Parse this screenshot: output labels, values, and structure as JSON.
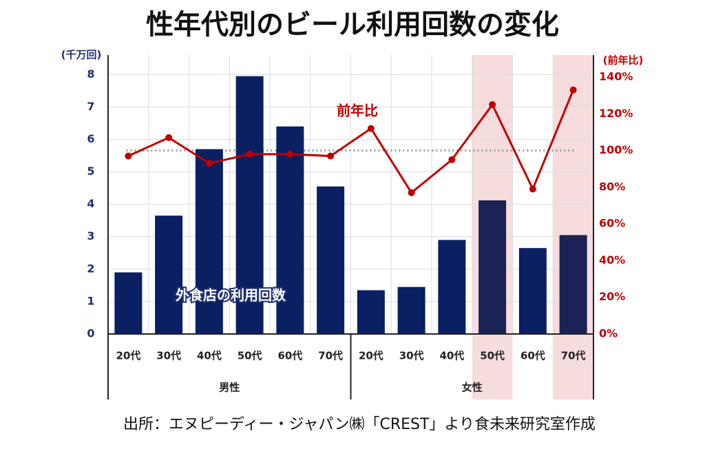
{
  "chart_data": {
    "type": "combo",
    "title": "性年代別のビール利用回数の変化",
    "source": "出所：エヌピーディー・ジャパン㈱「CREST」より食未来研究室作成",
    "y_label": "(千万回)",
    "y2_label": "(前年比)",
    "categories": [
      "20代",
      "30代",
      "40代",
      "50代",
      "60代",
      "70代",
      "20代",
      "30代",
      "40代",
      "50代",
      "60代",
      "70代"
    ],
    "groups": [
      "男性",
      "女性"
    ],
    "highlight": [
      9,
      11
    ],
    "series": [
      {
        "name": "外食店の利用回数",
        "type": "bar",
        "color": "#0b1f63",
        "values": [
          1.9,
          3.65,
          5.7,
          7.95,
          6.4,
          4.55,
          1.35,
          1.45,
          2.9,
          4.12,
          2.65,
          3.05
        ]
      },
      {
        "name": "前年比",
        "type": "line",
        "axis": "y2",
        "color": "#c00000",
        "values": [
          97,
          107,
          93,
          98,
          98,
          97,
          112,
          77,
          95,
          125,
          79,
          133
        ]
      }
    ],
    "y2_reference": 100,
    "ylim": [
      0,
      8.6
    ],
    "yticks": [
      0,
      1,
      2,
      3,
      4,
      5,
      6,
      7,
      8
    ],
    "y2lim": [
      0,
      152
    ],
    "y2ticks": [
      {
        "value": 0,
        "label": "0%"
      },
      {
        "value": 20,
        "label": "20%"
      },
      {
        "value": 40,
        "label": "40%"
      },
      {
        "value": 60,
        "label": "60%"
      },
      {
        "value": 80,
        "label": "80%"
      },
      {
        "value": 100,
        "label": "100%"
      },
      {
        "value": 120,
        "label": "120%"
      },
      {
        "value": 140,
        "label": "140%"
      }
    ],
    "grid": true
  }
}
